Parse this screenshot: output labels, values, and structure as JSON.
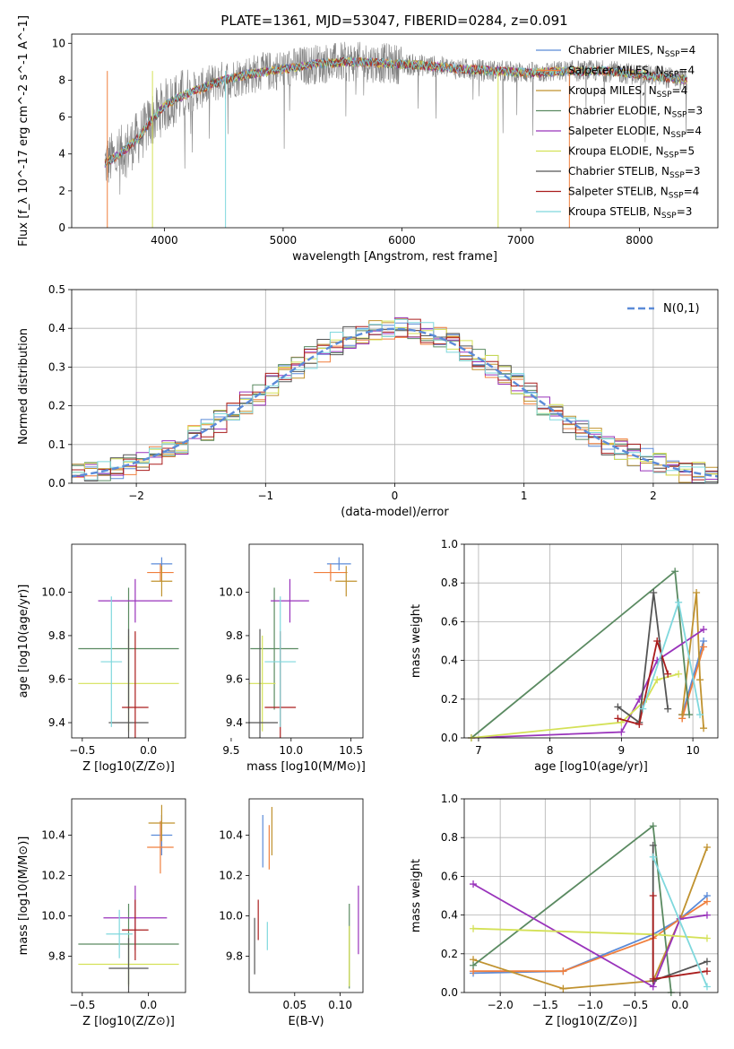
{
  "figure": {
    "title": "PLATE=1361, MJD=53047, FIBERID=0284, z=0.091"
  },
  "series_styles": [
    {
      "name": "Chabrier MILES",
      "nssp": "4",
      "color": "#5b8bd8"
    },
    {
      "name": "Salpeter MILES",
      "nssp": "4",
      "color": "#f07f3d"
    },
    {
      "name": "Kroupa MILES",
      "nssp": "4",
      "color": "#c0922f"
    },
    {
      "name": "Chabrier ELODIE",
      "nssp": "3",
      "color": "#5a8a61"
    },
    {
      "name": "Salpeter ELODIE",
      "nssp": "4",
      "color": "#9933bb"
    },
    {
      "name": "Kroupa ELODIE",
      "nssp": "5",
      "color": "#d4e157"
    },
    {
      "name": "Chabrier STELIB",
      "nssp": "3",
      "color": "#555555"
    },
    {
      "name": "Salpeter STELIB",
      "nssp": "4",
      "color": "#aa1d1d"
    },
    {
      "name": "Kroupa STELIB",
      "nssp": "3",
      "color": "#7fd8dd"
    }
  ],
  "chart_data": [
    {
      "id": "spectrum",
      "type": "line",
      "title": "PLATE=1361, MJD=53047, FIBERID=0284, z=0.091",
      "xlabel": "wavelength [Angstrom, rest frame]",
      "ylabel": "Flux [f_λ 10^-17 erg cm^-2 s^-1 A^-1]",
      "xlim": [
        3220,
        8660
      ],
      "ylim": [
        0,
        10.5
      ],
      "xticks": [
        "4000",
        "5000",
        "6000",
        "7000",
        "8000"
      ],
      "yticks": [
        "0",
        "2",
        "4",
        "6",
        "8",
        "10"
      ],
      "grid": false,
      "legend": "right",
      "data_color": "#808080",
      "continuum": {
        "x": [
          3500,
          3600,
          3700,
          3800,
          3900,
          4000,
          4100,
          4200,
          4300,
          4400,
          4500,
          4700,
          5000,
          5300,
          5600,
          5900,
          6200,
          6500,
          6800,
          7100,
          7400,
          7700,
          8000,
          8300,
          8400
        ],
        "y": [
          3.5,
          3.9,
          4.4,
          5.0,
          5.9,
          6.6,
          7.0,
          7.3,
          7.5,
          7.8,
          8.0,
          8.3,
          8.6,
          8.9,
          9.0,
          8.9,
          8.8,
          8.6,
          8.5,
          8.4,
          8.5,
          8.5,
          8.3,
          8.1,
          8.0
        ]
      }
    },
    {
      "id": "residuals",
      "type": "line",
      "xlabel": "(data-model)/error",
      "ylabel": "Normed distribution",
      "xlim": [
        -2.5,
        2.5
      ],
      "ylim": [
        0,
        0.5
      ],
      "xticks": [
        "−2",
        "−1",
        "0",
        "1",
        "2"
      ],
      "yticks": [
        "0.0",
        "0.1",
        "0.2",
        "0.3",
        "0.4",
        "0.5"
      ],
      "grid": true,
      "legend": "top-right",
      "legend_label": "N(0,1)",
      "gaussian_color": "#5b8bd8",
      "bin_width": 0.1
    },
    {
      "id": "z-age",
      "type": "scatter",
      "xlabel": "Z [log10(Z/Z⊙)]",
      "ylabel": "age [log10(age/yr)]",
      "xlim": [
        -0.58,
        0.28
      ],
      "ylim": [
        9.33,
        10.22
      ],
      "xticks": [
        "−0.5",
        "0.0"
      ],
      "yticks": [
        "9.4",
        "9.6",
        "9.8",
        "10.0"
      ],
      "points": [
        {
          "x": 0.1,
          "xerr": 0.08,
          "y": 10.13,
          "yerr": 0.03
        },
        {
          "x": 0.09,
          "xerr": 0.1,
          "y": 10.09,
          "yerr": 0.04
        },
        {
          "x": 0.1,
          "xerr": 0.08,
          "y": 10.05,
          "yerr": 0.07
        },
        {
          "x": -0.15,
          "xerr": 0.38,
          "y": 9.74,
          "yerr": 0.28
        },
        {
          "x": -0.1,
          "xerr": 0.28,
          "y": 9.96,
          "yerr": 0.1
        },
        {
          "x": -0.15,
          "xerr": 0.38,
          "y": 9.58,
          "yerr": 0.22
        },
        {
          "x": -0.15,
          "xerr": 0.15,
          "y": 9.4,
          "yerr": 0.43
        },
        {
          "x": -0.1,
          "xerr": 0.1,
          "y": 9.47,
          "yerr": 0.35
        },
        {
          "x": -0.28,
          "xerr": 0.08,
          "y": 9.68,
          "yerr": 0.3
        }
      ]
    },
    {
      "id": "mass-age",
      "type": "scatter",
      "xlabel": "mass [log10(M/M⊙)]",
      "ylabel": "",
      "xlim": [
        9.65,
        10.6
      ],
      "ylim": [
        9.33,
        10.22
      ],
      "xticks": [
        "9.5",
        "10.0",
        "10.5"
      ],
      "yticks": [
        "9.4",
        "9.6",
        "9.8",
        "10.0"
      ],
      "points": [
        {
          "x": 10.4,
          "xerr": 0.1,
          "y": 10.13,
          "yerr": 0.03
        },
        {
          "x": 10.33,
          "xerr": 0.14,
          "y": 10.09,
          "yerr": 0.04
        },
        {
          "x": 10.46,
          "xerr": 0.09,
          "y": 10.05,
          "yerr": 0.07
        },
        {
          "x": 9.86,
          "xerr": 0.2,
          "y": 9.74,
          "yerr": 0.28
        },
        {
          "x": 9.99,
          "xerr": 0.16,
          "y": 9.96,
          "yerr": 0.1
        },
        {
          "x": 9.76,
          "xerr": 0.11,
          "y": 9.58,
          "yerr": 0.22
        },
        {
          "x": 9.74,
          "xerr": 0.15,
          "y": 9.4,
          "yerr": 0.43
        },
        {
          "x": 9.91,
          "xerr": 0.13,
          "y": 9.47,
          "yerr": 0.35
        },
        {
          "x": 9.91,
          "xerr": 0.13,
          "y": 9.68,
          "yerr": 0.3
        }
      ]
    },
    {
      "id": "age-weight",
      "type": "line",
      "xlabel": "age [log10(age/yr)]",
      "ylabel": "mass weight",
      "xlim": [
        6.8,
        10.35
      ],
      "ylim": [
        0,
        1.0
      ],
      "xticks": [
        "7",
        "8",
        "9",
        "10"
      ],
      "yticks": [
        "0.0",
        "0.2",
        "0.4",
        "0.6",
        "0.8",
        "1.0"
      ],
      "grid": true,
      "series": [
        {
          "x": [
            9.85,
            10.15,
            9.85
          ],
          "y": [
            0.12,
            0.5,
            0.12
          ]
        },
        {
          "x": [
            9.85,
            10.15,
            9.85
          ],
          "y": [
            0.1,
            0.47,
            0.1
          ]
        },
        {
          "x": [
            9.85,
            10.05,
            10.1,
            10.15
          ],
          "y": [
            0.12,
            0.75,
            0.3,
            0.05
          ]
        },
        {
          "x": [
            6.9,
            9.75,
            9.95
          ],
          "y": [
            0.0,
            0.86,
            0.12
          ]
        },
        {
          "x": [
            6.9,
            9.0,
            9.25,
            9.5,
            10.15
          ],
          "y": [
            0.0,
            0.03,
            0.2,
            0.4,
            0.56
          ]
        },
        {
          "x": [
            6.9,
            9.0,
            9.35,
            9.5,
            9.8
          ],
          "y": [
            0.0,
            0.08,
            0.2,
            0.3,
            0.33
          ]
        },
        {
          "x": [
            8.95,
            9.25,
            9.45,
            9.65
          ],
          "y": [
            0.16,
            0.08,
            0.75,
            0.15
          ]
        },
        {
          "x": [
            8.95,
            9.25,
            9.5,
            9.65
          ],
          "y": [
            0.1,
            0.07,
            0.5,
            0.33
          ]
        },
        {
          "x": [
            9.3,
            9.8,
            10.1
          ],
          "y": [
            0.15,
            0.7,
            0.12
          ]
        }
      ]
    },
    {
      "id": "z-mass",
      "type": "scatter",
      "xlabel": "Z [log10(Z/Z⊙)]",
      "ylabel": "mass [log10(M/M⊙)]",
      "xlim": [
        -0.58,
        0.28
      ],
      "ylim": [
        9.62,
        10.58
      ],
      "xticks": [
        "−0.5",
        "0.0"
      ],
      "yticks": [
        "9.8",
        "10.0",
        "10.2",
        "10.4"
      ],
      "points": [
        {
          "x": 0.1,
          "xerr": 0.08,
          "y": 10.4,
          "yerr": 0.1
        },
        {
          "x": 0.09,
          "xerr": 0.1,
          "y": 10.34,
          "yerr": 0.13
        },
        {
          "x": 0.1,
          "xerr": 0.1,
          "y": 10.46,
          "yerr": 0.09
        },
        {
          "x": -0.15,
          "xerr": 0.38,
          "y": 9.86,
          "yerr": 0.2
        },
        {
          "x": -0.1,
          "xerr": 0.24,
          "y": 9.99,
          "yerr": 0.16
        },
        {
          "x": -0.15,
          "xerr": 0.38,
          "y": 9.76,
          "yerr": 0.11
        },
        {
          "x": -0.15,
          "xerr": 0.15,
          "y": 9.74,
          "yerr": 0.15
        },
        {
          "x": -0.1,
          "xerr": 0.1,
          "y": 9.93,
          "yerr": 0.15
        },
        {
          "x": -0.22,
          "xerr": 0.1,
          "y": 9.91,
          "yerr": 0.12
        }
      ]
    },
    {
      "id": "ebv-mass",
      "type": "scatter",
      "xlabel": "E(B-V)",
      "ylabel": "",
      "xlim": [
        0.0,
        0.125
      ],
      "ylim": [
        9.62,
        10.58
      ],
      "xticks": [
        "0.05",
        "0.10"
      ],
      "yticks": [
        "9.8",
        "10.0",
        "10.2",
        "10.4"
      ],
      "points": [
        {
          "x": 0.015,
          "y": 10.37,
          "yerr": 0.13
        },
        {
          "x": 0.022,
          "y": 10.34,
          "yerr": 0.11
        },
        {
          "x": 0.025,
          "y": 10.42,
          "yerr": 0.12
        },
        {
          "x": 0.11,
          "y": 9.85,
          "yerr": 0.21
        },
        {
          "x": 0.12,
          "y": 9.98,
          "yerr": 0.17
        },
        {
          "x": 0.11,
          "y": 9.8,
          "yerr": 0.15
        },
        {
          "x": 0.006,
          "y": 9.85,
          "yerr": 0.14
        },
        {
          "x": 0.01,
          "y": 9.98,
          "yerr": 0.1
        },
        {
          "x": 0.02,
          "y": 9.9,
          "yerr": 0.07
        }
      ]
    },
    {
      "id": "z-weight",
      "type": "line",
      "xlabel": "Z [log10(Z/Z⊙)]",
      "ylabel": "mass weight",
      "xlim": [
        -2.4,
        0.42
      ],
      "ylim": [
        0,
        1.0
      ],
      "xticks": [
        "−2.0",
        "−1.5",
        "−1.0",
        "−0.5",
        "0.0"
      ],
      "yticks": [
        "0.0",
        "0.2",
        "0.4",
        "0.6",
        "0.8",
        "1.0"
      ],
      "grid": true,
      "series": [
        {
          "x": [
            -2.3,
            -1.3,
            -0.3,
            0.0,
            0.3
          ],
          "y": [
            0.1,
            0.11,
            0.3,
            0.38,
            0.5
          ]
        },
        {
          "x": [
            -2.3,
            -1.3,
            -0.3,
            0.0,
            0.3
          ],
          "y": [
            0.11,
            0.11,
            0.28,
            0.38,
            0.47
          ]
        },
        {
          "x": [
            -2.3,
            -1.3,
            -0.3,
            0.0,
            0.3
          ],
          "y": [
            0.17,
            0.02,
            0.06,
            0.38,
            0.75
          ]
        },
        {
          "x": [
            -2.3,
            -0.3,
            -0.1
          ],
          "y": [
            0.14,
            0.86,
            0.0
          ]
        },
        {
          "x": [
            -2.3,
            -0.3,
            0.0,
            0.3
          ],
          "y": [
            0.56,
            0.03,
            0.38,
            0.4
          ]
        },
        {
          "x": [
            -2.3,
            -0.3,
            0.3
          ],
          "y": [
            0.33,
            0.3,
            0.28
          ]
        },
        {
          "x": [
            -0.3,
            -0.3,
            0.3
          ],
          "y": [
            0.76,
            0.06,
            0.16
          ]
        },
        {
          "x": [
            -0.3,
            -0.3,
            0.3
          ],
          "y": [
            0.5,
            0.07,
            0.11
          ]
        },
        {
          "x": [
            -0.3,
            0.3
          ],
          "y": [
            0.7,
            0.03
          ]
        }
      ]
    }
  ]
}
